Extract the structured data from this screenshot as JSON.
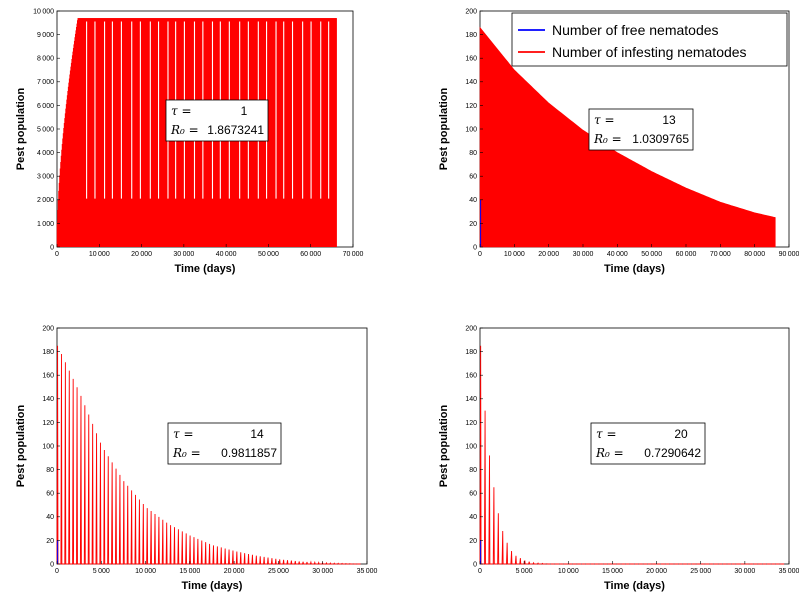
{
  "colors": {
    "free": "#0000ff",
    "infesting": "#ff0000"
  },
  "legend": {
    "placement": "top-right of panel 2",
    "entries": [
      {
        "label": "Number of free nematodes",
        "color": "#0000ff"
      },
      {
        "label": "Number of infesting nematodes",
        "color": "#ff0000"
      }
    ]
  },
  "chart_data": [
    {
      "type": "line",
      "xlabel": "Time (days)",
      "ylabel": "Pest population",
      "xlim": [
        0,
        70000
      ],
      "ylim": [
        0,
        10000
      ],
      "xticks": [
        0,
        10000,
        20000,
        30000,
        40000,
        50000,
        60000,
        70000
      ],
      "yticks": [
        0,
        1000,
        2000,
        3000,
        4000,
        5000,
        6000,
        7000,
        8000,
        9000,
        10000
      ],
      "grid": false,
      "annotation": {
        "tau_symbol": "τ =",
        "tau": "1",
        "r0_symbol": "R₀ =",
        "r0": "1.8673241"
      },
      "series": [
        {
          "name": "Number of infesting nematodes",
          "pattern": "oscillating envelope",
          "x_end": 66000,
          "peak_plateau": 9700,
          "rise_end": 5000,
          "low_trough": 2050
        }
      ]
    },
    {
      "type": "line",
      "xlabel": "Time (days)",
      "ylabel": "Pest population",
      "xlim": [
        0,
        90000
      ],
      "ylim": [
        0,
        200
      ],
      "xticks": [
        0,
        10000,
        20000,
        30000,
        40000,
        50000,
        60000,
        70000,
        80000,
        90000
      ],
      "yticks": [
        0,
        20,
        40,
        60,
        80,
        100,
        120,
        140,
        160,
        180,
        200
      ],
      "grid": false,
      "annotation": {
        "tau_symbol": "τ =",
        "tau": "13",
        "r0_symbol": "R₀ =",
        "r0": "1.0309765"
      },
      "series": [
        {
          "name": "Number of infesting nematodes",
          "pattern": "decaying envelope",
          "x_end": 86000,
          "envelope": [
            [
              0,
              186
            ],
            [
              10000,
              150
            ],
            [
              20000,
              122
            ],
            [
              30000,
              99
            ],
            [
              40000,
              80
            ],
            [
              50000,
              64
            ],
            [
              60000,
              50
            ],
            [
              70000,
              38
            ],
            [
              80000,
              29
            ],
            [
              86000,
              25
            ]
          ]
        }
      ]
    },
    {
      "type": "line",
      "xlabel": "Time (days)",
      "ylabel": "Pest population",
      "xlim": [
        0,
        35000
      ],
      "ylim": [
        0,
        200
      ],
      "xticks": [
        0,
        5000,
        10000,
        15000,
        20000,
        25000,
        30000,
        35000
      ],
      "yticks": [
        0,
        20,
        40,
        60,
        80,
        100,
        120,
        140,
        160,
        180,
        200
      ],
      "grid": false,
      "annotation": {
        "tau_symbol": "τ =",
        "tau": "14",
        "r0_symbol": "R₀ =",
        "r0": "0.9811857"
      },
      "series": [
        {
          "name": "Number of infesting nematodes",
          "pattern": "decaying pulses",
          "x_end": 34000,
          "pulse_period": 440,
          "envelope": [
            [
              0,
              185
            ],
            [
              2500,
              145
            ],
            [
              5000,
              100
            ],
            [
              7500,
              70
            ],
            [
              10000,
              48
            ],
            [
              12500,
              34
            ],
            [
              15000,
              24
            ],
            [
              17500,
              16
            ],
            [
              20000,
              11
            ],
            [
              22500,
              7
            ],
            [
              25000,
              4
            ],
            [
              27500,
              2
            ],
            [
              30000,
              1
            ],
            [
              34000,
              0
            ]
          ]
        }
      ]
    },
    {
      "type": "line",
      "xlabel": "Time (days)",
      "ylabel": "Pest population",
      "xlim": [
        0,
        35000
      ],
      "ylim": [
        0,
        200
      ],
      "xticks": [
        0,
        5000,
        10000,
        15000,
        20000,
        25000,
        30000,
        35000
      ],
      "yticks": [
        0,
        20,
        40,
        60,
        80,
        100,
        120,
        140,
        160,
        180,
        200
      ],
      "grid": false,
      "annotation": {
        "tau_symbol": "τ =",
        "tau": "20",
        "r0_symbol": "R₀ =",
        "r0": "0.7290642"
      },
      "series": [
        {
          "name": "Number of infesting nematodes",
          "pattern": "decaying pulses",
          "x_end": 34000,
          "pulse_period": 500,
          "envelope": [
            [
              0,
              185
            ],
            [
              500,
              130
            ],
            [
              1000,
              92
            ],
            [
              1500,
              65
            ],
            [
              2000,
              43
            ],
            [
              2500,
              28
            ],
            [
              3000,
              18
            ],
            [
              3500,
              11
            ],
            [
              4000,
              7
            ],
            [
              5000,
              3
            ],
            [
              6000,
              1
            ],
            [
              8000,
              0
            ],
            [
              34000,
              0
            ]
          ]
        }
      ]
    }
  ]
}
